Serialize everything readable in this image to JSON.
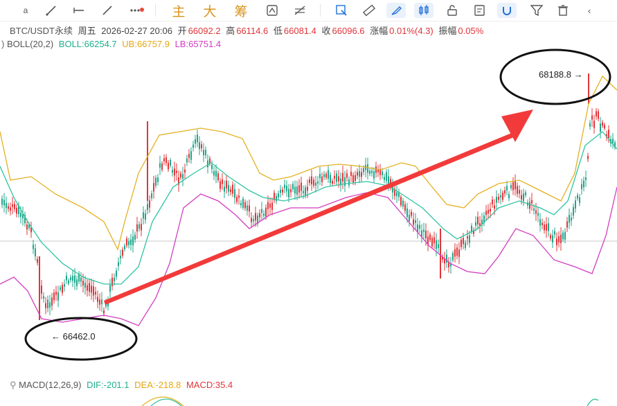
{
  "toolbar": {
    "main_label": "主",
    "big_label": "大",
    "chip_label": "筹"
  },
  "header": {
    "symbol": "BTC/USDT永续",
    "weekday": "周五",
    "datetime": "2026-02-27 20:06",
    "open_label": "开",
    "open_value": "66092.2",
    "high_label": "高",
    "high_value": "66114.6",
    "low_label": "低",
    "low_value": "66081.4",
    "close_label": "收",
    "close_value": "66096.6",
    "change_label": "涨幅",
    "change_value": "0.01%(4.3)",
    "amp_label": "振幅",
    "amp_value": "0.05%"
  },
  "boll": {
    "paren": ")",
    "name": "BOLL(20,2)",
    "mid": "BOLL:66254.7",
    "ub": "UB:66757.9",
    "lb": "LB:65751.4"
  },
  "macd": {
    "name": "MACD(12,26,9)",
    "dif": "DIF:-201.1",
    "dea": "DEA:-218.8",
    "macd": "MACD:35.4"
  },
  "annotations": {
    "high_label": "68188.8 →",
    "low_label": "← 66462.0"
  },
  "colors": {
    "up": "#e0343a",
    "down": "#1fa58b",
    "mid": "#2ec4a0",
    "ub": "#e5b020",
    "lb": "#d23cc0",
    "arrow": "#f23a3a"
  }
}
